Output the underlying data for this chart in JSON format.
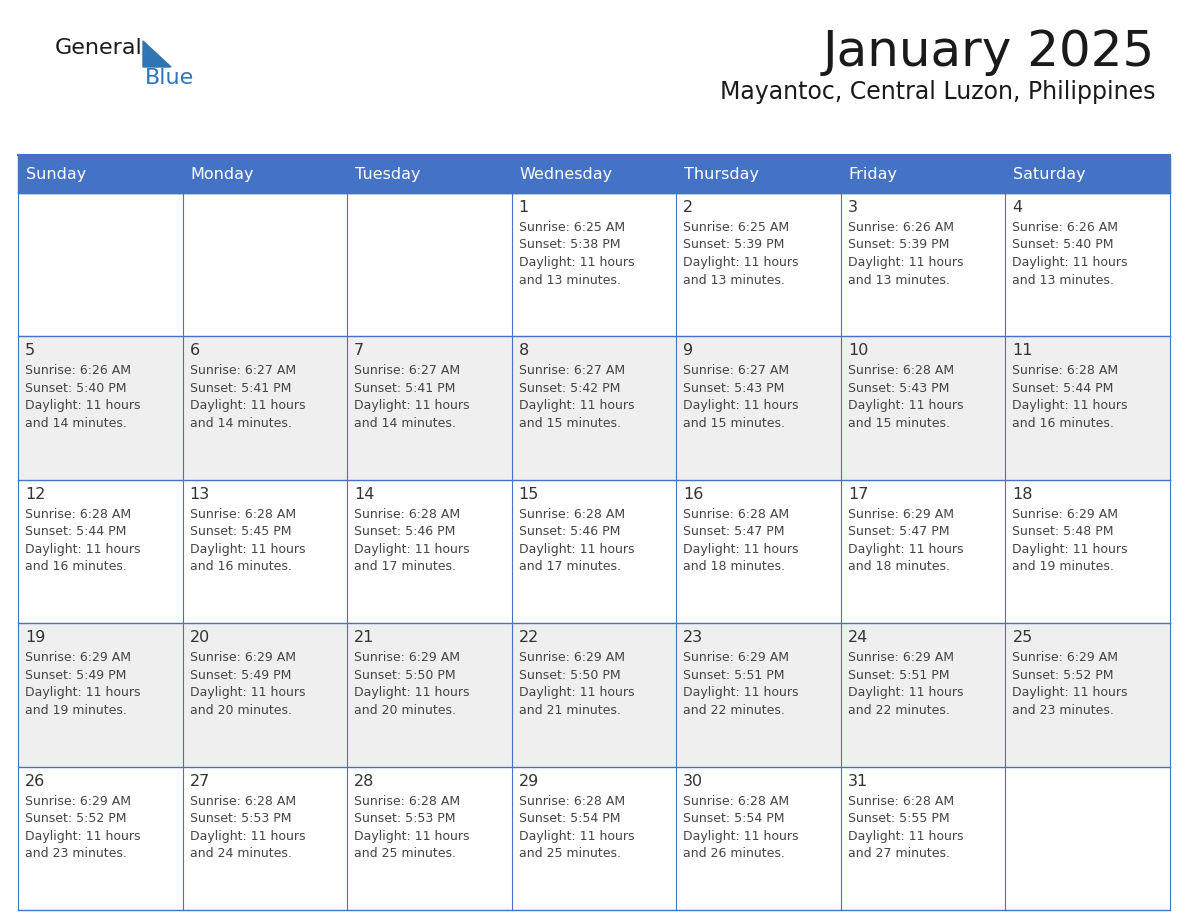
{
  "title": "January 2025",
  "subtitle": "Mayantoc, Central Luzon, Philippines",
  "header_bg": "#4472C4",
  "header_text_color": "#FFFFFF",
  "weekdays": [
    "Sunday",
    "Monday",
    "Tuesday",
    "Wednesday",
    "Thursday",
    "Friday",
    "Saturday"
  ],
  "odd_row_bg": "#FFFFFF",
  "even_row_bg": "#EFEFEF",
  "cell_text_color": "#444444",
  "day_num_color": "#333333",
  "grid_color": "#4472C4",
  "logo_general_color": "#1a1a1a",
  "logo_blue_color": "#2E75B6",
  "calendar_data": [
    [
      {
        "day": null,
        "sunrise": null,
        "sunset": null,
        "daylight": null
      },
      {
        "day": null,
        "sunrise": null,
        "sunset": null,
        "daylight": null
      },
      {
        "day": null,
        "sunrise": null,
        "sunset": null,
        "daylight": null
      },
      {
        "day": 1,
        "sunrise": "6:25 AM",
        "sunset": "5:38 PM",
        "daylight": "11 hours and 13 minutes."
      },
      {
        "day": 2,
        "sunrise": "6:25 AM",
        "sunset": "5:39 PM",
        "daylight": "11 hours and 13 minutes."
      },
      {
        "day": 3,
        "sunrise": "6:26 AM",
        "sunset": "5:39 PM",
        "daylight": "11 hours and 13 minutes."
      },
      {
        "day": 4,
        "sunrise": "6:26 AM",
        "sunset": "5:40 PM",
        "daylight": "11 hours and 13 minutes."
      }
    ],
    [
      {
        "day": 5,
        "sunrise": "6:26 AM",
        "sunset": "5:40 PM",
        "daylight": "11 hours and 14 minutes."
      },
      {
        "day": 6,
        "sunrise": "6:27 AM",
        "sunset": "5:41 PM",
        "daylight": "11 hours and 14 minutes."
      },
      {
        "day": 7,
        "sunrise": "6:27 AM",
        "sunset": "5:41 PM",
        "daylight": "11 hours and 14 minutes."
      },
      {
        "day": 8,
        "sunrise": "6:27 AM",
        "sunset": "5:42 PM",
        "daylight": "11 hours and 15 minutes."
      },
      {
        "day": 9,
        "sunrise": "6:27 AM",
        "sunset": "5:43 PM",
        "daylight": "11 hours and 15 minutes."
      },
      {
        "day": 10,
        "sunrise": "6:28 AM",
        "sunset": "5:43 PM",
        "daylight": "11 hours and 15 minutes."
      },
      {
        "day": 11,
        "sunrise": "6:28 AM",
        "sunset": "5:44 PM",
        "daylight": "11 hours and 16 minutes."
      }
    ],
    [
      {
        "day": 12,
        "sunrise": "6:28 AM",
        "sunset": "5:44 PM",
        "daylight": "11 hours and 16 minutes."
      },
      {
        "day": 13,
        "sunrise": "6:28 AM",
        "sunset": "5:45 PM",
        "daylight": "11 hours and 16 minutes."
      },
      {
        "day": 14,
        "sunrise": "6:28 AM",
        "sunset": "5:46 PM",
        "daylight": "11 hours and 17 minutes."
      },
      {
        "day": 15,
        "sunrise": "6:28 AM",
        "sunset": "5:46 PM",
        "daylight": "11 hours and 17 minutes."
      },
      {
        "day": 16,
        "sunrise": "6:28 AM",
        "sunset": "5:47 PM",
        "daylight": "11 hours and 18 minutes."
      },
      {
        "day": 17,
        "sunrise": "6:29 AM",
        "sunset": "5:47 PM",
        "daylight": "11 hours and 18 minutes."
      },
      {
        "day": 18,
        "sunrise": "6:29 AM",
        "sunset": "5:48 PM",
        "daylight": "11 hours and 19 minutes."
      }
    ],
    [
      {
        "day": 19,
        "sunrise": "6:29 AM",
        "sunset": "5:49 PM",
        "daylight": "11 hours and 19 minutes."
      },
      {
        "day": 20,
        "sunrise": "6:29 AM",
        "sunset": "5:49 PM",
        "daylight": "11 hours and 20 minutes."
      },
      {
        "day": 21,
        "sunrise": "6:29 AM",
        "sunset": "5:50 PM",
        "daylight": "11 hours and 20 minutes."
      },
      {
        "day": 22,
        "sunrise": "6:29 AM",
        "sunset": "5:50 PM",
        "daylight": "11 hours and 21 minutes."
      },
      {
        "day": 23,
        "sunrise": "6:29 AM",
        "sunset": "5:51 PM",
        "daylight": "11 hours and 22 minutes."
      },
      {
        "day": 24,
        "sunrise": "6:29 AM",
        "sunset": "5:51 PM",
        "daylight": "11 hours and 22 minutes."
      },
      {
        "day": 25,
        "sunrise": "6:29 AM",
        "sunset": "5:52 PM",
        "daylight": "11 hours and 23 minutes."
      }
    ],
    [
      {
        "day": 26,
        "sunrise": "6:29 AM",
        "sunset": "5:52 PM",
        "daylight": "11 hours and 23 minutes."
      },
      {
        "day": 27,
        "sunrise": "6:28 AM",
        "sunset": "5:53 PM",
        "daylight": "11 hours and 24 minutes."
      },
      {
        "day": 28,
        "sunrise": "6:28 AM",
        "sunset": "5:53 PM",
        "daylight": "11 hours and 25 minutes."
      },
      {
        "day": 29,
        "sunrise": "6:28 AM",
        "sunset": "5:54 PM",
        "daylight": "11 hours and 25 minutes."
      },
      {
        "day": 30,
        "sunrise": "6:28 AM",
        "sunset": "5:54 PM",
        "daylight": "11 hours and 26 minutes."
      },
      {
        "day": 31,
        "sunrise": "6:28 AM",
        "sunset": "5:55 PM",
        "daylight": "11 hours and 27 minutes."
      },
      {
        "day": null,
        "sunrise": null,
        "sunset": null,
        "daylight": null
      }
    ]
  ]
}
